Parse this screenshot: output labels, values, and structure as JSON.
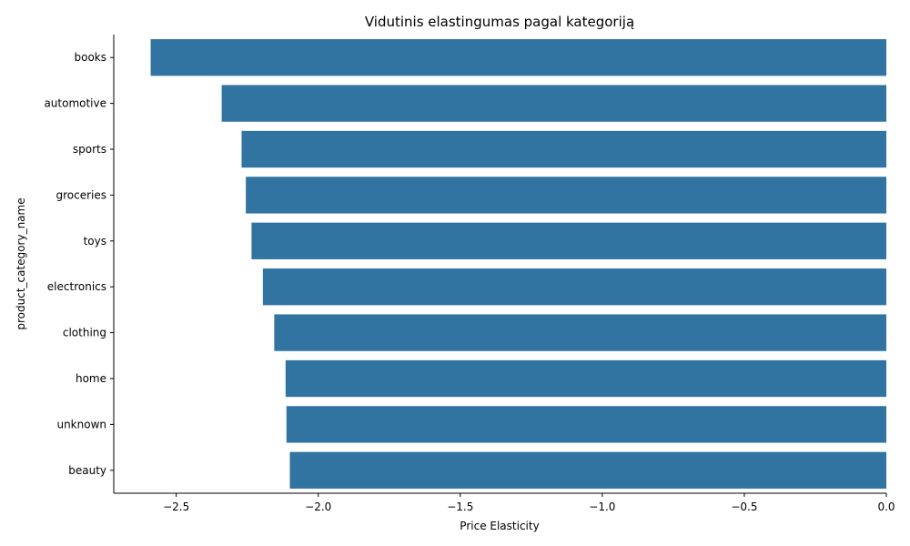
{
  "chart_data": {
    "type": "bar",
    "orientation": "horizontal",
    "title": "Vidutinis elastingumas pagal kategoriją",
    "xlabel": "Price Elasticity",
    "ylabel": "product_category_name",
    "categories": [
      "books",
      "automotive",
      "sports",
      "groceries",
      "toys",
      "electronics",
      "clothing",
      "home",
      "unknown",
      "beauty"
    ],
    "values": [
      -2.59,
      -2.34,
      -2.27,
      -2.255,
      -2.235,
      -2.195,
      -2.155,
      -2.115,
      -2.112,
      -2.1
    ],
    "xlim": [
      -2.72,
      0.0
    ],
    "xticks": [
      -2.5,
      -2.0,
      -1.5,
      -1.0,
      -0.5,
      0.0
    ],
    "xtick_labels": [
      "−2.5",
      "−2.0",
      "−1.5",
      "−1.0",
      "−0.5",
      "0.0"
    ],
    "bar_color": "#3274a1",
    "grid": false
  }
}
